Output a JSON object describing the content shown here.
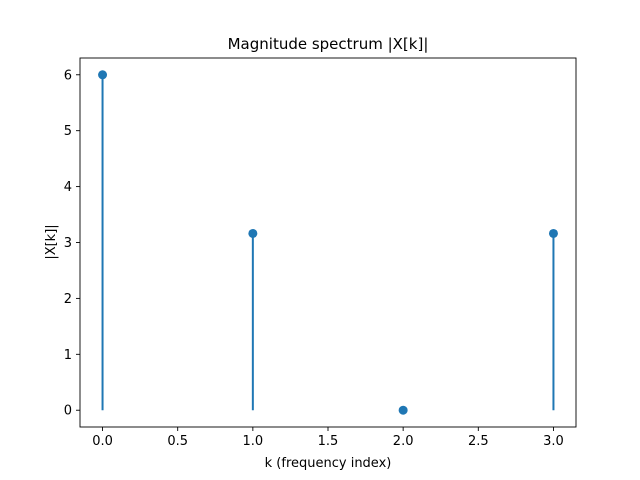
{
  "chart_data": {
    "type": "stem",
    "title": "Magnitude spectrum |X[k]|",
    "xlabel": "k (frequency index)",
    "ylabel": "|X[k]|",
    "x": [
      0,
      1,
      2,
      3
    ],
    "values": [
      6.0,
      3.162,
      0.0,
      3.162
    ],
    "xlim": [
      -0.15,
      3.15
    ],
    "ylim": [
      -0.3,
      6.3
    ],
    "xticks": [
      0.0,
      0.5,
      1.0,
      1.5,
      2.0,
      2.5,
      3.0
    ],
    "xtick_labels": [
      "0.0",
      "0.5",
      "1.0",
      "1.5",
      "2.0",
      "2.5",
      "3.0"
    ],
    "yticks": [
      0,
      1,
      2,
      3,
      4,
      5,
      6
    ],
    "ytick_labels": [
      "0",
      "1",
      "2",
      "3",
      "4",
      "5",
      "6"
    ],
    "grid": false,
    "legend": "none",
    "color": "#1f77b4"
  }
}
